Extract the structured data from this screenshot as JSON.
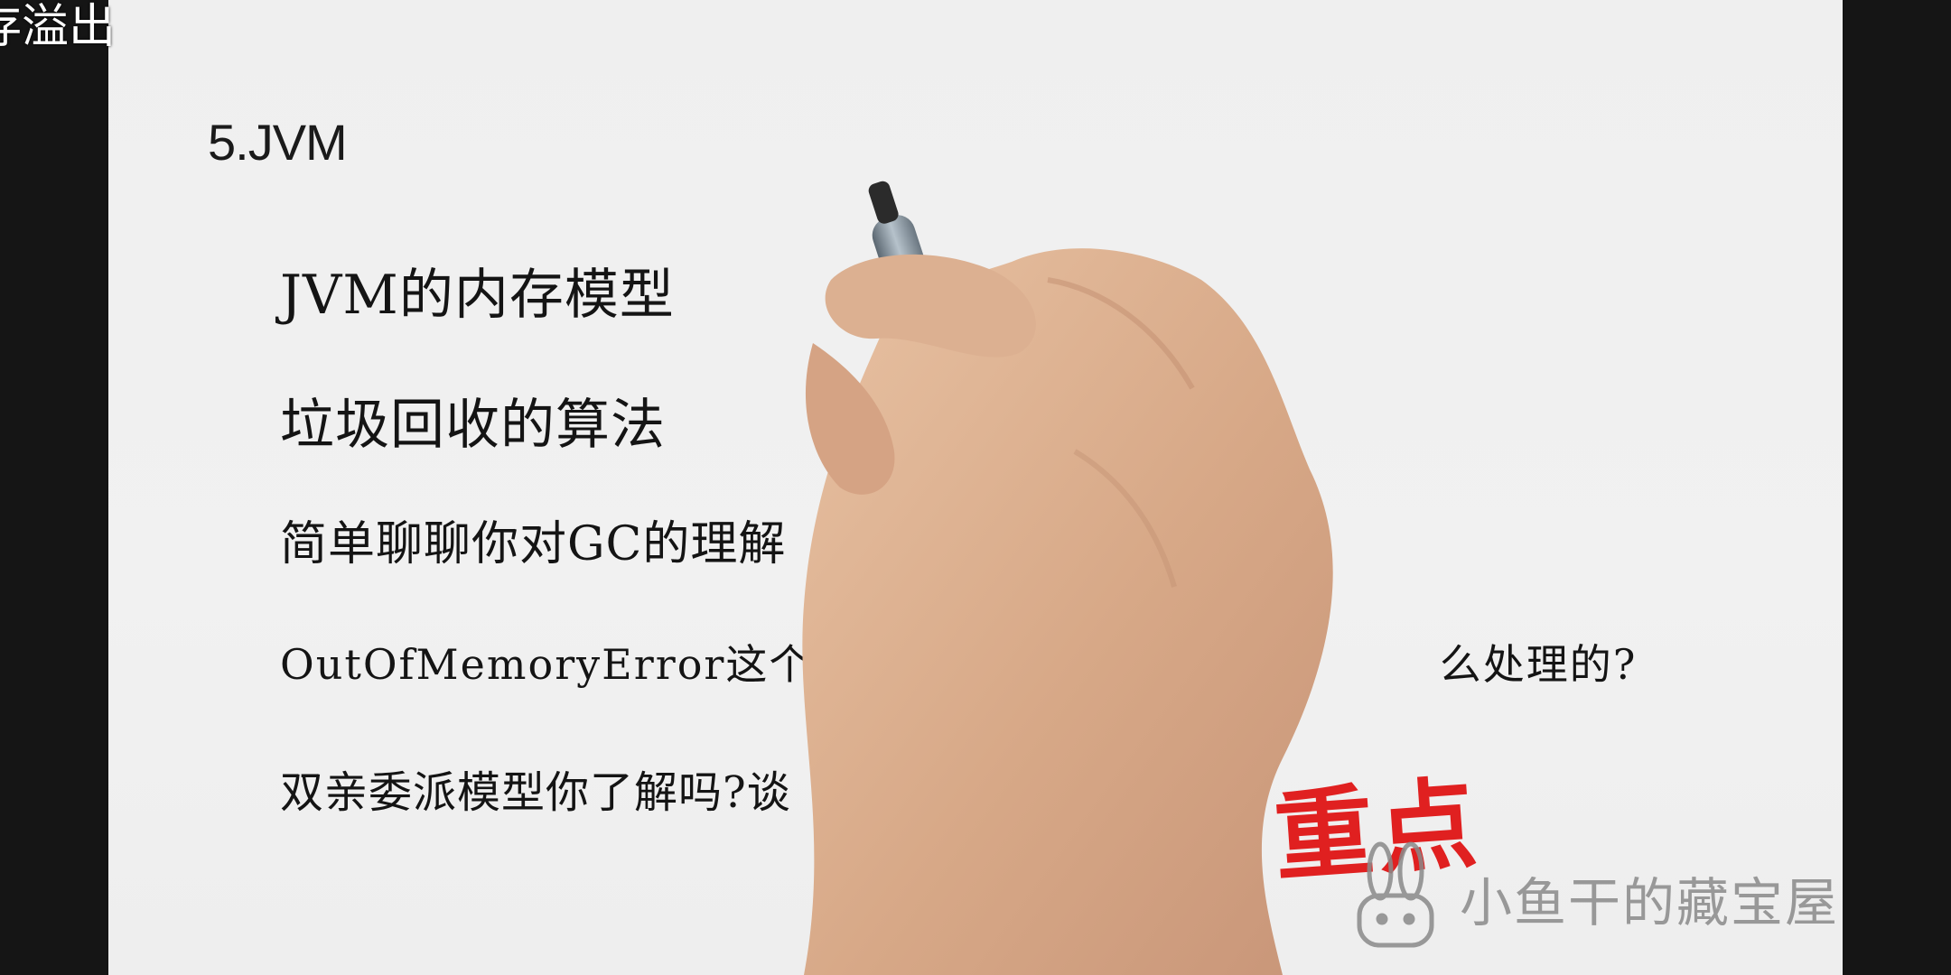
{
  "overlay": {
    "danmaku_text": "存溢出"
  },
  "slide": {
    "section_title": "5.JVM",
    "items": [
      {
        "text": "JVM的内存模型"
      },
      {
        "text": "垃圾回收的算法"
      },
      {
        "text": "简单聊聊你对GC的理解"
      },
      {
        "text": "OutOfMemoryError这个错误                                    么处理的?"
      },
      {
        "text": "双亲委派模型你了解吗?谈"
      }
    ],
    "stamp_text": "重点"
  },
  "watermark": {
    "text": "小鱼干的藏宝屋",
    "icon": "rabbit-icon"
  },
  "colors": {
    "background": "#f0f0f0",
    "stamp": "#e02020",
    "text": "#141414",
    "letterbox": "#151515"
  }
}
